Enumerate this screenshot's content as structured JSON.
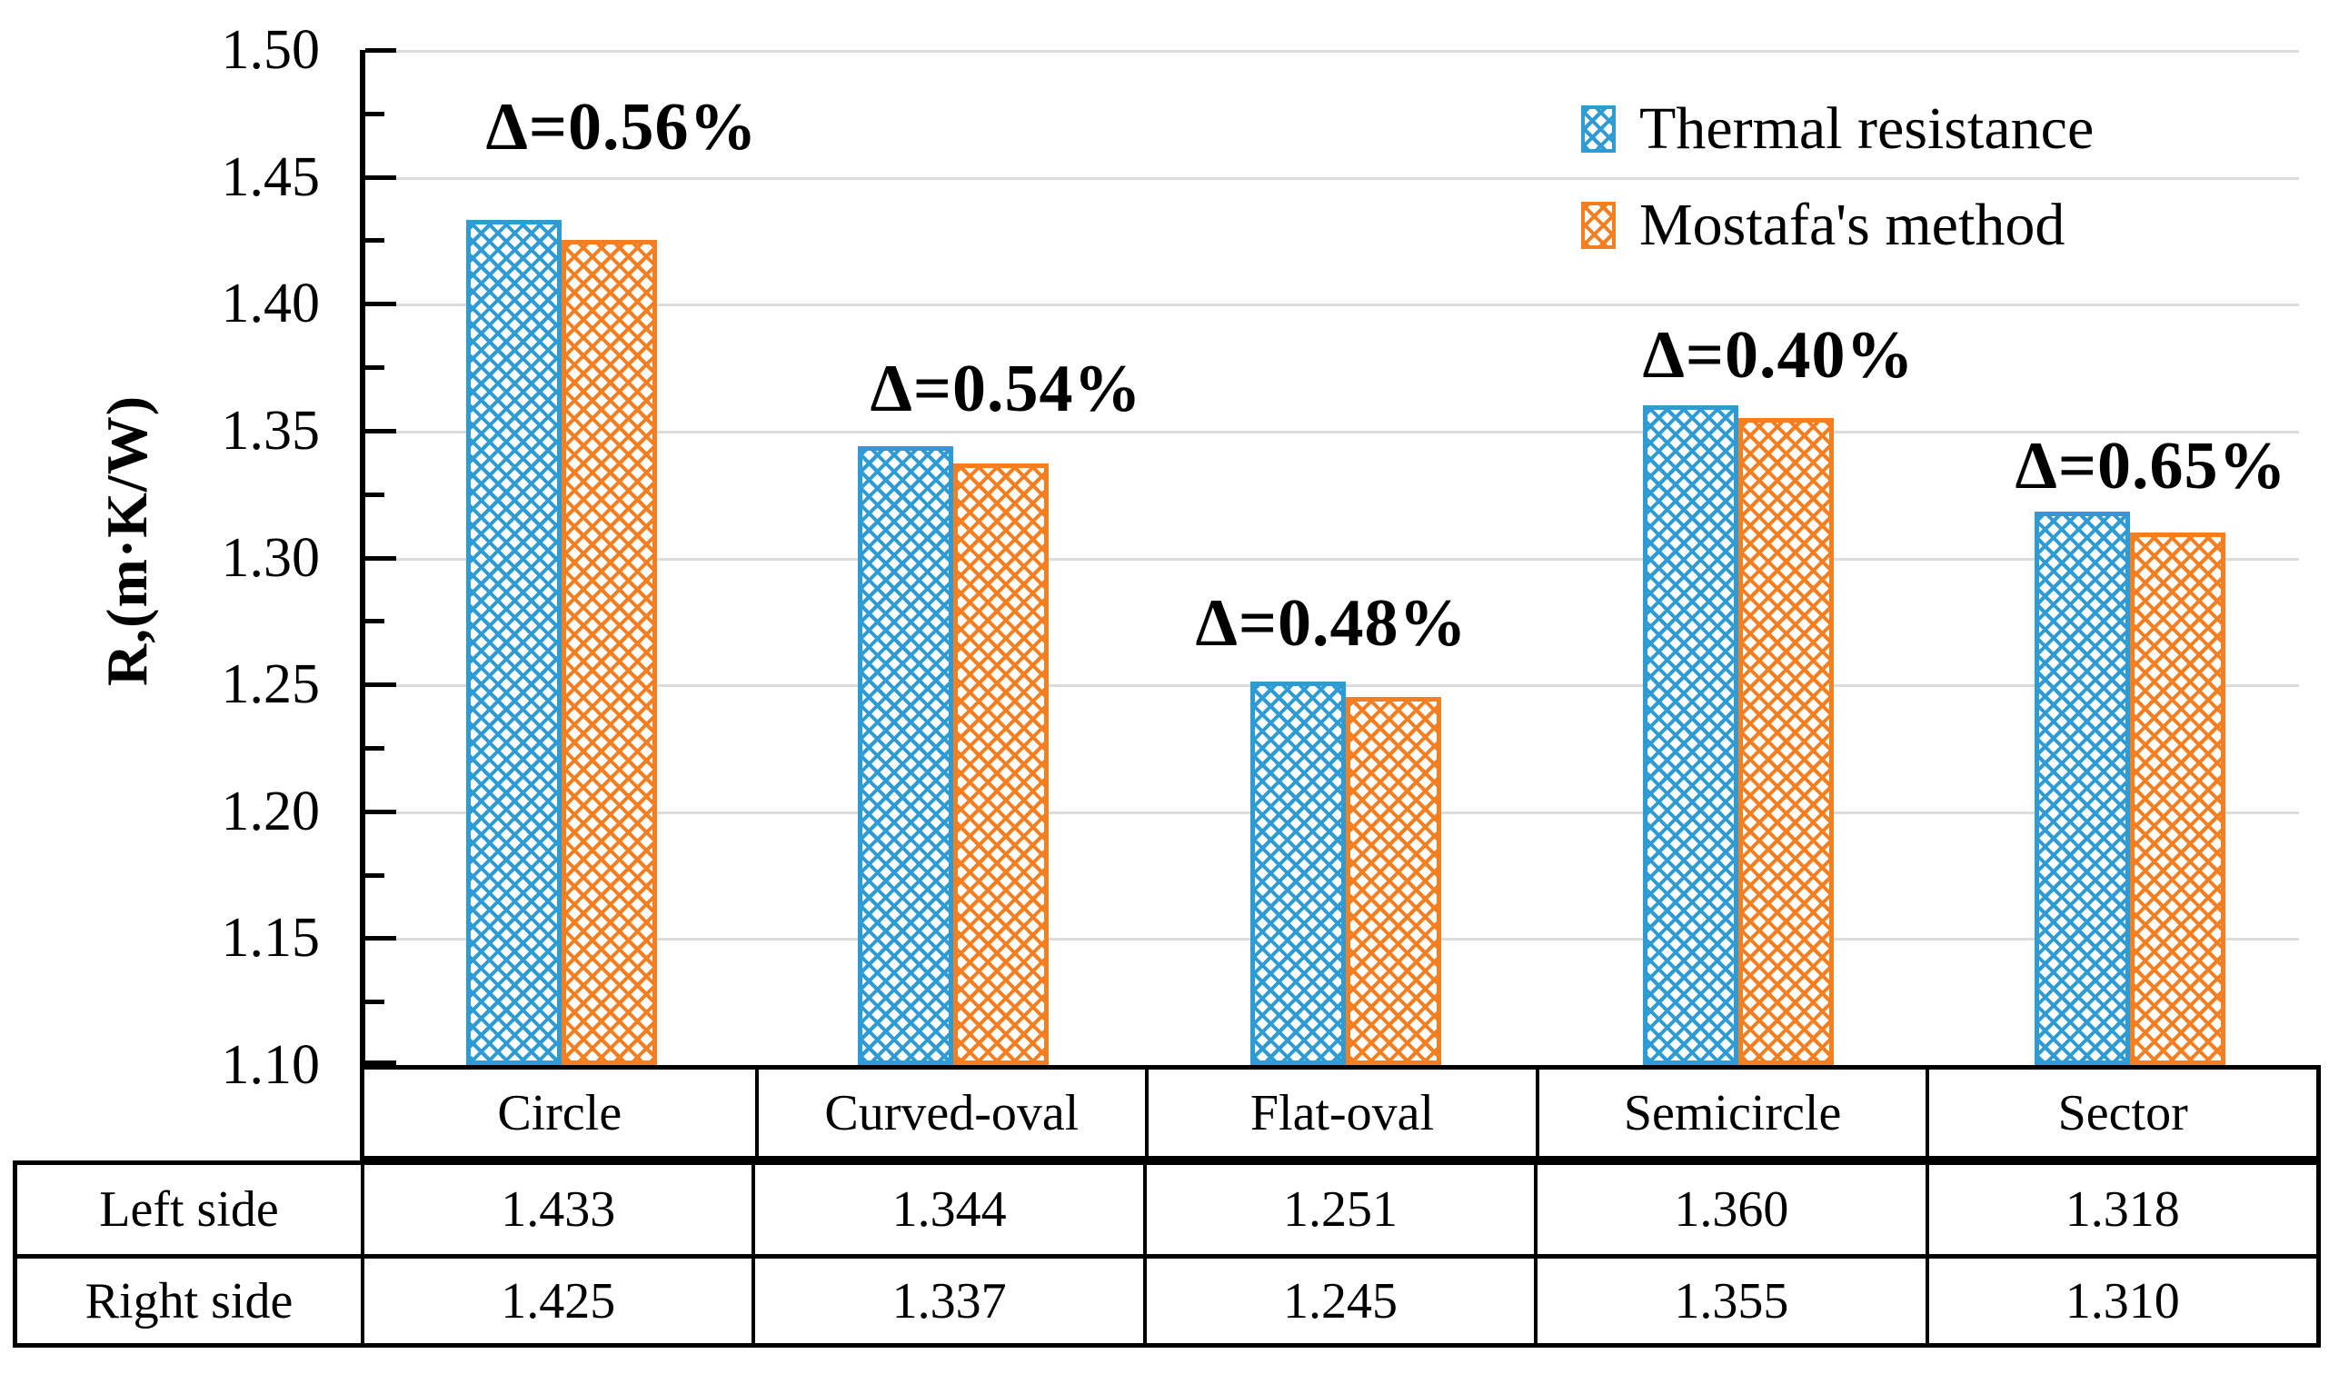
{
  "chart_data": {
    "type": "bar",
    "title": "",
    "ylabel": "R,(m·K/W)",
    "categories": [
      "Circle",
      "Curved-oval",
      "Flat-oval",
      "Semicircle",
      "Sector"
    ],
    "series": [
      {
        "name": "Thermal resistance",
        "color": "#2E9BD5",
        "values": [
          1.433,
          1.344,
          1.251,
          1.36,
          1.318
        ]
      },
      {
        "name": "Mostafa's method",
        "color": "#F57E20",
        "values": [
          1.425,
          1.337,
          1.245,
          1.355,
          1.31
        ]
      }
    ],
    "annotations": [
      "Δ=0.56%",
      "Δ=0.54%",
      "Δ=0.48%",
      "Δ=0.40%",
      "Δ=0.65%"
    ],
    "ylim": [
      1.1,
      1.5
    ],
    "ytick_step": 0.05,
    "yticks": [
      "1.50",
      "1.45",
      "1.40",
      "1.35",
      "1.30",
      "1.25",
      "1.20",
      "1.15",
      "1.10"
    ],
    "grid": true,
    "gridline_color": "#DCDCDC",
    "legend_position": "top-right",
    "pattern_style": "diagonal-crosshatch"
  },
  "table": {
    "row_labels": [
      "Left side",
      "Right side"
    ],
    "columns": [
      "Circle",
      "Curved-oval",
      "Flat-oval",
      "Semicircle",
      "Sector"
    ],
    "rows": [
      [
        "1.433",
        "1.344",
        "1.251",
        "1.360",
        "1.318"
      ],
      [
        "1.425",
        "1.337",
        "1.245",
        "1.355",
        "1.310"
      ]
    ]
  }
}
